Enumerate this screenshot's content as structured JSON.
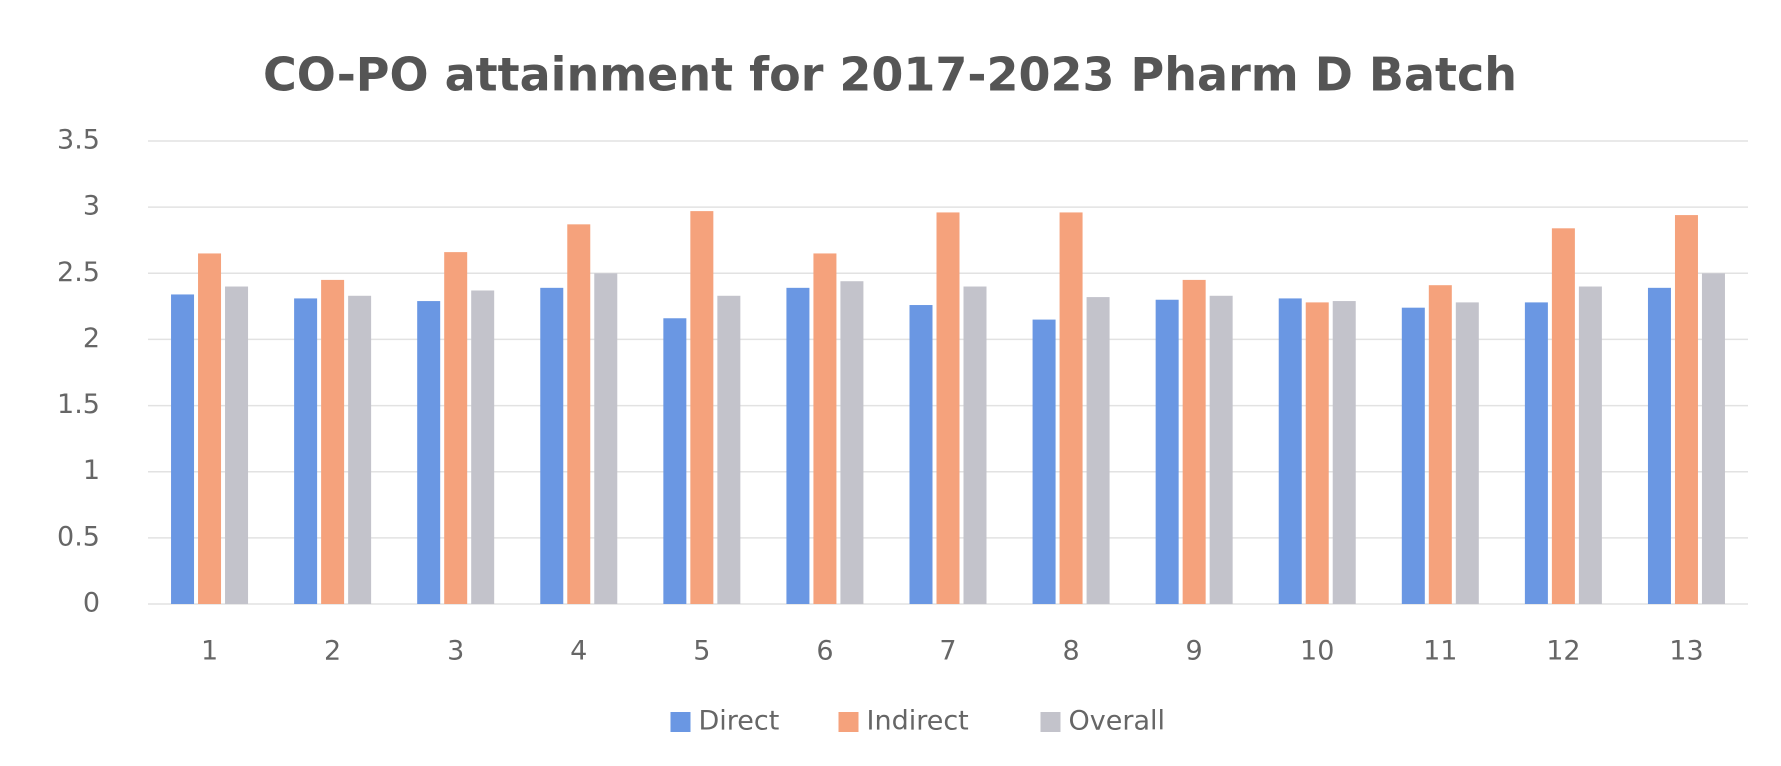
{
  "chart_data": {
    "type": "bar",
    "title": "CO-PO attainment for 2017-2023 Pharm D Batch",
    "categories": [
      "1",
      "2",
      "3",
      "4",
      "5",
      "6",
      "7",
      "8",
      "9",
      "10",
      "11",
      "12",
      "13"
    ],
    "series": [
      {
        "name": "Direct",
        "color": "#6a97e3",
        "values": [
          2.34,
          2.31,
          2.29,
          2.39,
          2.16,
          2.39,
          2.26,
          2.15,
          2.3,
          2.31,
          2.24,
          2.28,
          2.39
        ]
      },
      {
        "name": "Indirect",
        "color": "#f5a27c",
        "values": [
          2.65,
          2.45,
          2.66,
          2.87,
          2.97,
          2.65,
          2.96,
          2.96,
          2.45,
          2.28,
          2.41,
          2.84,
          2.94
        ]
      },
      {
        "name": "Overall",
        "color": "#c3c3cb",
        "values": [
          2.4,
          2.33,
          2.37,
          2.5,
          2.33,
          2.44,
          2.4,
          2.32,
          2.33,
          2.29,
          2.28,
          2.4,
          2.5
        ]
      }
    ],
    "ylim": [
      0,
      3.5
    ],
    "yticks": [
      0,
      0.5,
      1,
      1.5,
      2,
      2.5,
      3,
      3.5
    ],
    "grid": true,
    "legend": "bottom"
  }
}
